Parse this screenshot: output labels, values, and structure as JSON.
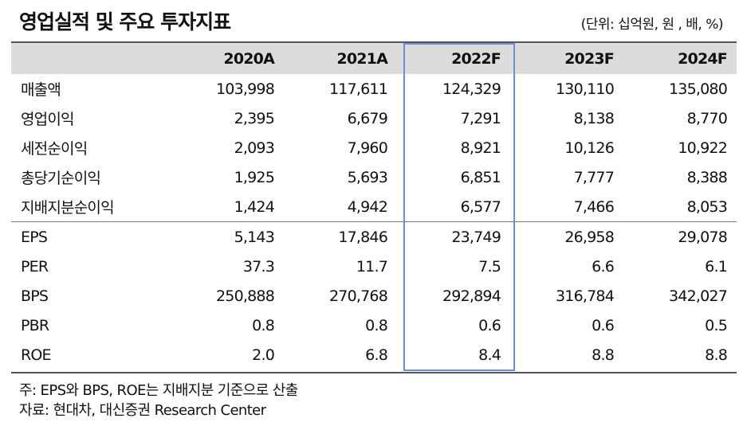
{
  "title": "영업실적 및 주요 투자지표",
  "unit": "(단위: 십억원, 원 , 배, %)",
  "table": {
    "columns": [
      "",
      "2020A",
      "2021A",
      "2022F",
      "2023F",
      "2024F"
    ],
    "rows": [
      {
        "label": "매출액",
        "values": [
          "103,998",
          "117,611",
          "124,329",
          "130,110",
          "135,080"
        ]
      },
      {
        "label": "영업이익",
        "values": [
          "2,395",
          "6,679",
          "7,291",
          "8,138",
          "8,770"
        ]
      },
      {
        "label": "세전순이익",
        "values": [
          "2,093",
          "7,960",
          "8,921",
          "10,126",
          "10,922"
        ]
      },
      {
        "label": "총당기순이익",
        "values": [
          "1,925",
          "5,693",
          "6,851",
          "7,777",
          "8,388"
        ]
      },
      {
        "label": "지배지분순이익",
        "values": [
          "1,424",
          "4,942",
          "6,577",
          "7,466",
          "8,053"
        ]
      },
      {
        "label": "EPS",
        "values": [
          "5,143",
          "17,846",
          "23,749",
          "26,958",
          "29,078"
        ]
      },
      {
        "label": "PER",
        "values": [
          "37.3",
          "11.7",
          "7.5",
          "6.6",
          "6.1"
        ]
      },
      {
        "label": "BPS",
        "values": [
          "250,888",
          "270,768",
          "292,894",
          "316,784",
          "342,027"
        ]
      },
      {
        "label": "PBR",
        "values": [
          "0.8",
          "0.8",
          "0.6",
          "0.6",
          "0.5"
        ]
      },
      {
        "label": "ROE",
        "values": [
          "2.0",
          "6.8",
          "8.4",
          "8.8",
          "8.8"
        ]
      }
    ]
  },
  "notes": [
    "주: EPS와 BPS, ROE는 지배지분 기준으로 산출",
    "자료: 현대차, 대신증권 Research Center"
  ],
  "colors": {
    "header_bg": "#dcdcdc",
    "highlight_border": "#6b8fd0"
  }
}
